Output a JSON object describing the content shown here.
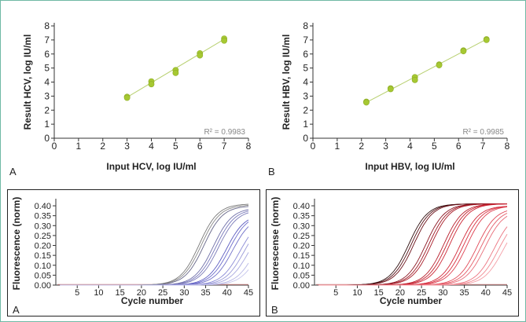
{
  "figure": {
    "border_color": "#6fb8a4"
  },
  "chart_data": [
    {
      "id": "hcv-linearity",
      "type": "scatter",
      "panel_label": "A",
      "xlabel": "Input HCV, log IU/ml",
      "ylabel": "Result HCV, log IU/ml",
      "xlim": [
        0,
        8
      ],
      "ylim": [
        0,
        8
      ],
      "xticks": [
        0,
        1,
        2,
        3,
        4,
        5,
        6,
        7,
        8
      ],
      "yticks": [
        0,
        1,
        2,
        3,
        4,
        5,
        6,
        7,
        8
      ],
      "annotation": "R² = 0.9983",
      "grid": false,
      "point_color": "#a6c832",
      "fit_line_color": "#b8d070",
      "fit_line": {
        "x": [
          3,
          7
        ],
        "y": [
          2.92,
          7.05
        ]
      },
      "points": [
        {
          "x": 3,
          "y": 2.95
        },
        {
          "x": 3,
          "y": 2.88
        },
        {
          "x": 4,
          "y": 4.05
        },
        {
          "x": 4,
          "y": 3.85
        },
        {
          "x": 5,
          "y": 4.85
        },
        {
          "x": 5,
          "y": 4.65
        },
        {
          "x": 6,
          "y": 6.05
        },
        {
          "x": 6,
          "y": 5.9
        },
        {
          "x": 7,
          "y": 7.1
        },
        {
          "x": 7,
          "y": 6.95
        }
      ]
    },
    {
      "id": "hbv-linearity",
      "type": "scatter",
      "panel_label": "B",
      "xlabel": "Input HBV, log IU/ml",
      "ylabel": "Result HBV, log IU/ml",
      "xlim": [
        0,
        8
      ],
      "ylim": [
        0,
        8
      ],
      "xticks": [
        0,
        1,
        2,
        3,
        4,
        5,
        6,
        7,
        8
      ],
      "yticks": [
        0,
        1,
        2,
        3,
        4,
        5,
        6,
        7,
        8
      ],
      "annotation": "R² = 0.9985",
      "grid": false,
      "point_color": "#a6c832",
      "fit_line_color": "#b8d070",
      "fit_line": {
        "x": [
          2.2,
          7.15
        ],
        "y": [
          2.55,
          7.05
        ]
      },
      "points": [
        {
          "x": 2.2,
          "y": 2.6
        },
        {
          "x": 2.2,
          "y": 2.55
        },
        {
          "x": 3.2,
          "y": 3.55
        },
        {
          "x": 3.2,
          "y": 3.5
        },
        {
          "x": 4.2,
          "y": 4.35
        },
        {
          "x": 4.2,
          "y": 4.15
        },
        {
          "x": 5.2,
          "y": 5.25
        },
        {
          "x": 5.2,
          "y": 5.2
        },
        {
          "x": 6.2,
          "y": 6.25
        },
        {
          "x": 6.2,
          "y": 6.2
        },
        {
          "x": 7.15,
          "y": 7.05
        },
        {
          "x": 7.15,
          "y": 7.0
        }
      ]
    },
    {
      "id": "hcv-amplification",
      "type": "line",
      "panel_label": "A",
      "xlabel": "Cycle number",
      "ylabel": "Fluorescence (norm)",
      "xlim": [
        0,
        45
      ],
      "ylim": [
        0,
        0.42
      ],
      "xticks": [
        5,
        10,
        15,
        20,
        25,
        30,
        35,
        40,
        45
      ],
      "yticks": [
        0.0,
        0.05,
        0.1,
        0.15,
        0.2,
        0.25,
        0.3,
        0.35,
        0.4
      ],
      "ytick_labels": [
        "0.00",
        "0.05",
        "0.10",
        "0.15",
        "0.20",
        "0.25",
        "0.30",
        "0.35",
        "0.40"
      ],
      "baseline_color": "#cc8888",
      "curves": [
        {
          "midpoint": 33.5,
          "max": 0.41,
          "color": "#777777"
        },
        {
          "midpoint": 34.0,
          "max": 0.405,
          "color": "#888888"
        },
        {
          "midpoint": 34.6,
          "max": 0.4,
          "color": "#666688"
        },
        {
          "midpoint": 36.8,
          "max": 0.39,
          "color": "#6e6ea8"
        },
        {
          "midpoint": 37.4,
          "max": 0.385,
          "color": "#7777bb"
        },
        {
          "midpoint": 38.0,
          "max": 0.38,
          "color": "#7a7ab8"
        },
        {
          "midpoint": 39.8,
          "max": 0.36,
          "color": "#5b5bc0"
        },
        {
          "midpoint": 40.5,
          "max": 0.36,
          "color": "#6a6acc"
        },
        {
          "midpoint": 41.3,
          "max": 0.35,
          "color": "#7070c8"
        },
        {
          "midpoint": 43.0,
          "max": 0.34,
          "color": "#8a8ad6"
        },
        {
          "midpoint": 44.0,
          "max": 0.34,
          "color": "#9a9ad8"
        },
        {
          "midpoint": 45.0,
          "max": 0.33,
          "color": "#a8a8e0"
        },
        {
          "midpoint": 46.5,
          "max": 0.33,
          "color": "#b8b8e6"
        },
        {
          "midpoint": 47.5,
          "max": 0.32,
          "color": "#c4c4ec"
        }
      ]
    },
    {
      "id": "hbv-amplification",
      "type": "line",
      "panel_label": "B",
      "xlabel": "Cycle number",
      "ylabel": "Fluorescense (norm)",
      "xlim": [
        0,
        45
      ],
      "ylim": [
        0,
        0.42
      ],
      "xticks": [
        5,
        10,
        15,
        20,
        25,
        30,
        35,
        40,
        45
      ],
      "yticks": [
        0.0,
        0.05,
        0.1,
        0.15,
        0.2,
        0.25,
        0.3,
        0.35,
        0.4
      ],
      "ytick_labels": [
        "0.00",
        "0.05",
        "0.10",
        "0.15",
        "0.20",
        "0.25",
        "0.30",
        "0.35",
        "0.40"
      ],
      "baseline_color": "#d08a8a",
      "curves": [
        {
          "midpoint": 22.0,
          "max": 0.41,
          "color": "#2a0a0a"
        },
        {
          "midpoint": 22.6,
          "max": 0.41,
          "color": "#550e14"
        },
        {
          "midpoint": 23.2,
          "max": 0.41,
          "color": "#6b1018"
        },
        {
          "midpoint": 26.0,
          "max": 0.41,
          "color": "#8a1420"
        },
        {
          "midpoint": 26.7,
          "max": 0.41,
          "color": "#9e1824"
        },
        {
          "midpoint": 27.3,
          "max": 0.41,
          "color": "#a81c28"
        },
        {
          "midpoint": 30.2,
          "max": 0.41,
          "color": "#b81e2c"
        },
        {
          "midpoint": 30.9,
          "max": 0.41,
          "color": "#c4202e"
        },
        {
          "midpoint": 31.6,
          "max": 0.41,
          "color": "#cc2434"
        },
        {
          "midpoint": 34.0,
          "max": 0.4,
          "color": "#d22a3a"
        },
        {
          "midpoint": 34.8,
          "max": 0.4,
          "color": "#d83040"
        },
        {
          "midpoint": 35.6,
          "max": 0.4,
          "color": "#de4050"
        },
        {
          "midpoint": 38.0,
          "max": 0.39,
          "color": "#e04856"
        },
        {
          "midpoint": 38.9,
          "max": 0.385,
          "color": "#e45a66"
        },
        {
          "midpoint": 39.8,
          "max": 0.38,
          "color": "#e86c78"
        },
        {
          "midpoint": 42.0,
          "max": 0.37,
          "color": "#ec7480"
        },
        {
          "midpoint": 43.0,
          "max": 0.36,
          "color": "#f08890"
        },
        {
          "midpoint": 44.0,
          "max": 0.35,
          "color": "#f49ca4"
        }
      ]
    }
  ]
}
